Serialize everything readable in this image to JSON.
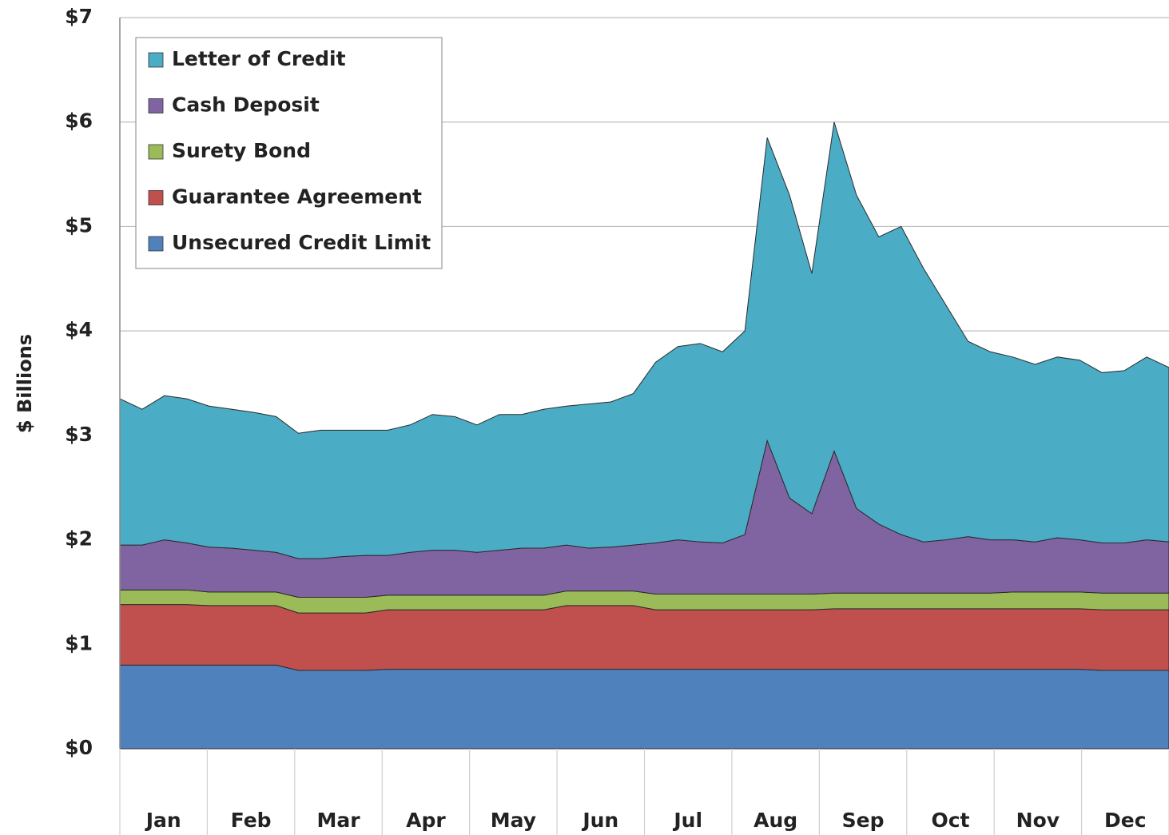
{
  "chart_data": {
    "type": "stacked-area",
    "ylabel": "$ Billions",
    "categories": [
      "Jan",
      null,
      null,
      null,
      "Feb",
      null,
      null,
      null,
      "Mar",
      null,
      null,
      null,
      "Apr",
      null,
      null,
      null,
      "May",
      null,
      null,
      null,
      "Jun",
      null,
      null,
      null,
      "Jul",
      null,
      null,
      null,
      "Aug",
      null,
      null,
      null,
      "Sep",
      null,
      null,
      null,
      "Oct",
      null,
      null,
      null,
      "Nov",
      null,
      null,
      null,
      "Dec",
      null,
      null,
      null
    ],
    "ylim": [
      0,
      7
    ],
    "yticks": [
      {
        "value": 0,
        "label": "$0"
      },
      {
        "value": 1,
        "label": "$1"
      },
      {
        "value": 2,
        "label": "$2"
      },
      {
        "value": 3,
        "label": "$3"
      },
      {
        "value": 4,
        "label": "$4"
      },
      {
        "value": 5,
        "label": "$5"
      },
      {
        "value": 6,
        "label": "$6"
      },
      {
        "value": 7,
        "label": "$7"
      }
    ],
    "grid": true,
    "legend": "upper left",
    "series": [
      {
        "name": "Unsecured Credit Limit",
        "color": "#4f81bd",
        "values": [
          0.8,
          0.8,
          0.8,
          0.8,
          0.8,
          0.8,
          0.8,
          0.8,
          0.75,
          0.75,
          0.75,
          0.75,
          0.76,
          0.76,
          0.76,
          0.76,
          0.76,
          0.76,
          0.76,
          0.76,
          0.76,
          0.76,
          0.76,
          0.76,
          0.76,
          0.76,
          0.76,
          0.76,
          0.76,
          0.76,
          0.76,
          0.76,
          0.76,
          0.76,
          0.76,
          0.76,
          0.76,
          0.76,
          0.76,
          0.76,
          0.76,
          0.76,
          0.76,
          0.76,
          0.75,
          0.75,
          0.75,
          0.75
        ]
      },
      {
        "name": "Guarantee Agreement",
        "color": "#c0504d",
        "values": [
          0.58,
          0.58,
          0.58,
          0.58,
          0.57,
          0.57,
          0.57,
          0.57,
          0.55,
          0.55,
          0.55,
          0.55,
          0.57,
          0.57,
          0.57,
          0.57,
          0.57,
          0.57,
          0.57,
          0.57,
          0.61,
          0.61,
          0.61,
          0.61,
          0.57,
          0.57,
          0.57,
          0.57,
          0.57,
          0.57,
          0.57,
          0.57,
          0.58,
          0.58,
          0.58,
          0.58,
          0.58,
          0.58,
          0.58,
          0.58,
          0.58,
          0.58,
          0.58,
          0.58,
          0.58,
          0.58,
          0.58,
          0.58
        ]
      },
      {
        "name": "Surety Bond",
        "color": "#9bbb59",
        "values": [
          0.14,
          0.14,
          0.14,
          0.14,
          0.13,
          0.13,
          0.13,
          0.13,
          0.15,
          0.15,
          0.15,
          0.15,
          0.14,
          0.14,
          0.14,
          0.14,
          0.14,
          0.14,
          0.14,
          0.14,
          0.14,
          0.14,
          0.14,
          0.14,
          0.15,
          0.15,
          0.15,
          0.15,
          0.15,
          0.15,
          0.15,
          0.15,
          0.15,
          0.15,
          0.15,
          0.15,
          0.15,
          0.15,
          0.15,
          0.15,
          0.16,
          0.16,
          0.16,
          0.16,
          0.16,
          0.16,
          0.16,
          0.16
        ]
      },
      {
        "name": "Cash Deposit",
        "color": "#8064a2",
        "values": [
          0.43,
          0.43,
          0.48,
          0.45,
          0.43,
          0.42,
          0.4,
          0.38,
          0.37,
          0.37,
          0.39,
          0.4,
          0.38,
          0.41,
          0.43,
          0.43,
          0.41,
          0.43,
          0.45,
          0.45,
          0.44,
          0.41,
          0.42,
          0.44,
          0.49,
          0.52,
          0.5,
          0.49,
          0.57,
          1.47,
          0.92,
          0.77,
          1.36,
          0.81,
          0.66,
          0.56,
          0.49,
          0.51,
          0.54,
          0.51,
          0.5,
          0.48,
          0.52,
          0.5,
          0.48,
          0.48,
          0.51,
          0.49
        ]
      },
      {
        "name": "Letter of Credit",
        "color": "#4bacc6",
        "values": [
          1.4,
          1.3,
          1.38,
          1.38,
          1.35,
          1.33,
          1.32,
          1.3,
          1.2,
          1.23,
          1.21,
          1.2,
          1.2,
          1.22,
          1.3,
          1.28,
          1.22,
          1.3,
          1.28,
          1.33,
          1.33,
          1.38,
          1.39,
          1.45,
          1.73,
          1.85,
          1.9,
          1.83,
          1.95,
          2.9,
          2.9,
          2.3,
          3.15,
          3.0,
          2.75,
          2.95,
          2.62,
          2.25,
          1.87,
          1.8,
          1.75,
          1.7,
          1.73,
          1.72,
          1.63,
          1.65,
          1.75,
          1.67
        ]
      }
    ]
  }
}
